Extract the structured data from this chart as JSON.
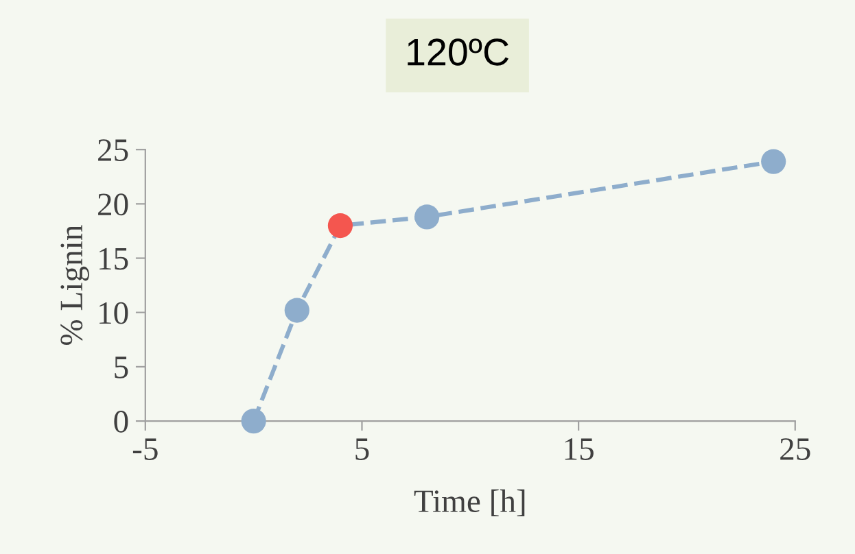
{
  "chart_data": {
    "type": "line",
    "title": "120ºC",
    "xlabel": "Time [h]",
    "ylabel": "% Lignin",
    "x": [
      0,
      2,
      4,
      8,
      24
    ],
    "series": [
      {
        "color": "#8eadcc",
        "colors": [
          "#8eadcc",
          "#8eadcc",
          "#f4564f",
          "#8eadcc",
          "#8eadcc"
        ],
        "values": [
          0,
          10.2,
          18,
          18.8,
          23.9
        ]
      }
    ],
    "xlim": [
      -5,
      25
    ],
    "xticks": [
      -5,
      5,
      15,
      25
    ],
    "ylim": [
      0,
      25
    ],
    "yticks": [
      0,
      5,
      10,
      15,
      20,
      25
    ],
    "marker": "circle",
    "line_style": "dashed",
    "grid": false,
    "legend": false
  }
}
